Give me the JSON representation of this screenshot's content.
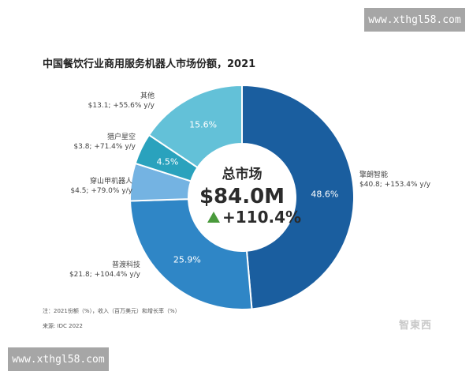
{
  "watermark": "www.xthgl58.com",
  "note": "注：2021份额（%），收入（百万美元）和增长率（%）",
  "source": "来源: IDC 2022",
  "logo_text": "智東西",
  "chart_data": {
    "type": "pie",
    "title": "中国餐饮行业商用服务机器人市场份额，2021",
    "center": {
      "label": "总市场",
      "total": "$84.0M",
      "growth": "+110.4%",
      "growth_color": "#4a9a3c"
    },
    "slices": [
      {
        "name": "擎朗智能",
        "share": 48.6,
        "share_label": "48.6%",
        "detail": "$40.8; +153.4% y/y",
        "color": "#1a5e9f"
      },
      {
        "name": "普渡科技",
        "share": 25.9,
        "share_label": "25.9%",
        "detail": "$21.8; +104.4% y/y",
        "color": "#2f86c6"
      },
      {
        "name": "穿山甲机器人",
        "share": 5.4,
        "share_label": "",
        "detail": "$4.5; +79.0% y/y",
        "color": "#74b3e2"
      },
      {
        "name": "猎户星空",
        "share": 4.5,
        "share_label": "4.5%",
        "detail": "$3.8; +71.4% y/y",
        "color": "#2aa2bd"
      },
      {
        "name": "其他",
        "share": 15.6,
        "share_label": "15.6%",
        "detail": "$13.1; +55.6% y/y",
        "color": "#63c1d8"
      }
    ]
  }
}
